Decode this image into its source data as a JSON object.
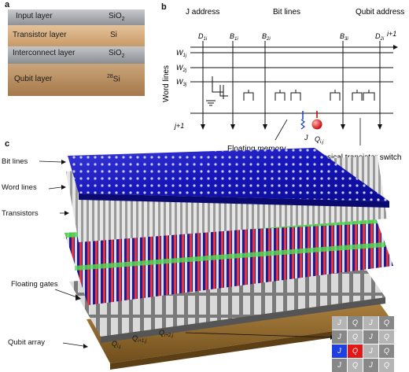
{
  "panel_a": {
    "label": "a",
    "layers": [
      {
        "name": "Input layer",
        "material": "SiO",
        "material_sub": "2"
      },
      {
        "name": "Transistor layer",
        "material": "Si",
        "material_sub": ""
      },
      {
        "name": "Interconnect layer",
        "material": "SiO",
        "material_sub": "2"
      },
      {
        "name": "Qubit layer",
        "material_sup": "28",
        "material": "Si"
      }
    ]
  },
  "panel_b": {
    "label": "b",
    "j_address": "J address",
    "bit_lines": "Bit lines",
    "qubit_address": "Qubit address",
    "i_plus_1": "i+1",
    "j_plus_1": "j+1",
    "word_lines": "Word lines",
    "column_labels": [
      {
        "main": "D",
        "sub": "1i"
      },
      {
        "main": "B",
        "sub": "1i"
      },
      {
        "main": "B",
        "sub": "2i"
      },
      {
        "main": "B",
        "sub": "3i"
      },
      {
        "main": "D",
        "sub": "2i"
      }
    ],
    "row_labels": [
      {
        "main": "W",
        "sub": "1j"
      },
      {
        "main": "W",
        "sub": "2j"
      },
      {
        "main": "W",
        "sub": "3j"
      }
    ],
    "j_label": "J",
    "q_label": "Q",
    "q_sub": "i,j",
    "floating_memory": "Floating memory",
    "classical_switch": "Classical transistor switch"
  },
  "panel_c": {
    "label": "c",
    "bit_lines": "Bit lines",
    "word_lines": "Word lines",
    "transistors": "Transistors",
    "floating_gates": "Floating gates",
    "qubit_array": "Qubit array",
    "q_labels": [
      {
        "main": "Q",
        "sub": "i,j"
      },
      {
        "main": "Q",
        "sub": "i+1,j"
      },
      {
        "main": "Q",
        "sub": "i+2,j"
      }
    ],
    "grid_cells": [
      "J",
      "Q",
      "J",
      "Q",
      "J",
      "Q",
      "J",
      "Q",
      "J",
      "Q",
      "J",
      "Q",
      "J",
      "Q",
      "J",
      "Q"
    ],
    "grid_highlight_label": "Q"
  }
}
